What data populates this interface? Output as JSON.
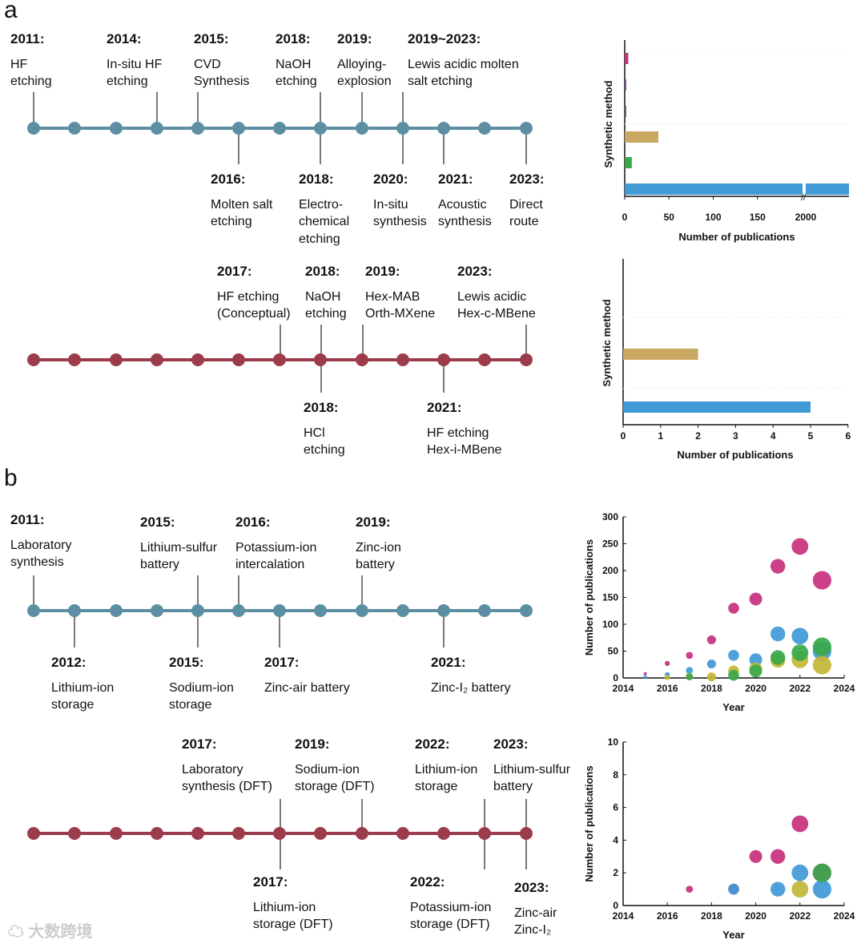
{
  "panels": {
    "a": "a",
    "b": "b"
  },
  "watermark": "大数跨境",
  "colors": {
    "teal": "#5d8fa2",
    "maroon": "#9c3b4c",
    "magenta": "#c8307e",
    "purple": "#7a4fa0",
    "gray": "#666666",
    "gold": "#c9a862",
    "green": "#3aa84a",
    "blue": "#3f9ad6",
    "yellow": "#c2b636"
  },
  "timelines": [
    {
      "color": "teal",
      "events": [
        {
          "year": "2011:",
          "lines": [
            "HF",
            "etching"
          ]
        },
        {
          "year": "2014:",
          "lines": [
            "In-situ HF",
            "etching"
          ]
        },
        {
          "year": "2015:",
          "lines": [
            "CVD",
            "Synthesis"
          ]
        },
        {
          "year": "2018:",
          "lines": [
            "NaOH",
            "etching"
          ]
        },
        {
          "year": "2019:",
          "lines": [
            "Alloying-",
            "explosion"
          ]
        },
        {
          "year": "2019~2023:",
          "lines": [
            "Lewis acidic molten",
            "salt etching"
          ]
        },
        {
          "year": "2016:",
          "lines": [
            "Molten salt",
            "etching"
          ]
        },
        {
          "year": "2018:",
          "lines": [
            "Electro-",
            "chemical",
            "etching"
          ]
        },
        {
          "year": "2020:",
          "lines": [
            "In-situ",
            "synthesis"
          ]
        },
        {
          "year": "2021:",
          "lines": [
            "Acoustic",
            "synthesis"
          ]
        },
        {
          "year": "2023:",
          "lines": [
            "Direct",
            "route"
          ]
        }
      ]
    },
    {
      "color": "maroon",
      "events": [
        {
          "year": "2017:",
          "lines": [
            "HF etching",
            "(Conceptual)"
          ]
        },
        {
          "year": "2018:",
          "lines": [
            "NaOH",
            "etching"
          ]
        },
        {
          "year": "2019:",
          "lines": [
            "Hex-MAB",
            "Orth-MXene"
          ]
        },
        {
          "year": "2023:",
          "lines": [
            "Lewis acidic",
            "Hex-c-MBene"
          ]
        },
        {
          "year": "2018:",
          "lines": [
            "HCl",
            "etching"
          ]
        },
        {
          "year": "2021:",
          "lines": [
            "HF etching",
            "Hex-i-MBene"
          ]
        }
      ]
    },
    {
      "color": "teal",
      "events": [
        {
          "year": "2011:",
          "lines": [
            "Laboratory",
            "synthesis"
          ]
        },
        {
          "year": "2015:",
          "lines": [
            "Lithium-sulfur",
            "battery"
          ]
        },
        {
          "year": "2016:",
          "lines": [
            "Potassium-ion",
            "intercalation"
          ]
        },
        {
          "year": "2019:",
          "lines": [
            "Zinc-ion",
            "battery"
          ]
        },
        {
          "year": "2012:",
          "lines": [
            "Lithium-ion",
            "storage"
          ]
        },
        {
          "year": "2015:",
          "lines": [
            "Sodium-ion",
            "storage"
          ]
        },
        {
          "year": "2017:",
          "lines": [
            "Zinc-air battery"
          ]
        },
        {
          "year": "2021:",
          "lines": [
            "Zinc-I₂ battery"
          ]
        }
      ]
    },
    {
      "color": "maroon",
      "events": [
        {
          "year": "2017:",
          "lines": [
            "Laboratory",
            "synthesis (DFT)"
          ]
        },
        {
          "year": "2019:",
          "lines": [
            "Sodium-ion",
            "storage (DFT)"
          ]
        },
        {
          "year": "2022:",
          "lines": [
            "Lithium-ion",
            "storage"
          ]
        },
        {
          "year": "2023:",
          "lines": [
            "Lithium-sulfur",
            "battery"
          ]
        },
        {
          "year": "2017:",
          "lines": [
            "Lithium-ion",
            "storage (DFT)"
          ]
        },
        {
          "year": "2022:",
          "lines": [
            "Potassium-ion",
            "storage (DFT)"
          ]
        },
        {
          "year": "2023:",
          "lines": [
            "Zinc-air",
            "Zinc-I₂"
          ]
        }
      ]
    }
  ],
  "chart_data": [
    {
      "type": "bar",
      "orientation": "horizontal",
      "xlabel": "Number of publications",
      "ylabel": "Synthetic method",
      "xticks": [
        "0",
        "50",
        "100",
        "150",
        "2000"
      ],
      "axis_break": [
        175,
        1975
      ],
      "bars": [
        {
          "color": "magenta",
          "value": 4
        },
        {
          "color": "purple",
          "value": 1
        },
        {
          "color": "gray",
          "value": 1
        },
        {
          "color": "gold",
          "value": 38
        },
        {
          "color": "green",
          "value": 8
        },
        {
          "color": "blue",
          "value": 2400
        }
      ]
    },
    {
      "type": "bar",
      "orientation": "horizontal",
      "xlabel": "Number of publications",
      "ylabel": "Synthetic method",
      "xlim": [
        0,
        6
      ],
      "xticks": [
        "0",
        "1",
        "2",
        "3",
        "4",
        "5",
        "6"
      ],
      "bars": [
        {
          "color": "gold",
          "value": 2
        },
        {
          "color": "blue",
          "value": 5
        }
      ]
    },
    {
      "type": "scatter",
      "xlabel": "Year",
      "ylabel": "Number of publications",
      "xlim": [
        2014,
        2024
      ],
      "ylim": [
        0,
        300
      ],
      "xticks": [
        "2014",
        "2016",
        "2018",
        "2020",
        "2022",
        "2024"
      ],
      "yticks": [
        "0",
        "50",
        "100",
        "150",
        "200",
        "250",
        "300"
      ],
      "series": [
        {
          "color": "magenta",
          "points": [
            [
              2015,
              8
            ],
            [
              2016,
              27
            ],
            [
              2017,
              42
            ],
            [
              2018,
              71
            ],
            [
              2019,
              130
            ],
            [
              2020,
              147
            ],
            [
              2021,
              208
            ],
            [
              2022,
              245
            ],
            [
              2023,
              182
            ]
          ]
        },
        {
          "color": "blue",
          "points": [
            [
              2015,
              2
            ],
            [
              2016,
              6
            ],
            [
              2017,
              14
            ],
            [
              2018,
              26
            ],
            [
              2019,
              42
            ],
            [
              2020,
              34
            ],
            [
              2021,
              82
            ],
            [
              2022,
              78
            ],
            [
              2023,
              50
            ]
          ]
        },
        {
          "color": "yellow",
          "points": [
            [
              2016,
              1
            ],
            [
              2017,
              3
            ],
            [
              2018,
              2
            ],
            [
              2019,
              13
            ],
            [
              2020,
              17
            ],
            [
              2021,
              33
            ],
            [
              2022,
              34
            ],
            [
              2023,
              24
            ]
          ]
        },
        {
          "color": "green",
          "points": [
            [
              2017,
              2
            ],
            [
              2019,
              5
            ],
            [
              2020,
              13
            ],
            [
              2021,
              38
            ],
            [
              2022,
              47
            ],
            [
              2023,
              58
            ]
          ]
        }
      ]
    },
    {
      "type": "scatter",
      "xlabel": "Year",
      "ylabel": "Number of publications",
      "xlim": [
        2014,
        2024
      ],
      "ylim": [
        0,
        10
      ],
      "xticks": [
        "2014",
        "2016",
        "2018",
        "2020",
        "2022",
        "2024"
      ],
      "yticks": [
        "0",
        "2",
        "4",
        "6",
        "8",
        "10"
      ],
      "series": [
        {
          "color": "magenta",
          "points": [
            [
              2017,
              1
            ],
            [
              2019,
              1
            ],
            [
              2020,
              3
            ],
            [
              2021,
              3
            ],
            [
              2022,
              5
            ],
            [
              2023,
              2
            ]
          ]
        },
        {
          "color": "blue",
          "points": [
            [
              2019,
              1
            ],
            [
              2021,
              1
            ],
            [
              2022,
              2
            ],
            [
              2023,
              1
            ]
          ]
        },
        {
          "color": "yellow",
          "points": [
            [
              2022,
              1
            ]
          ]
        },
        {
          "color": "green",
          "points": [
            [
              2023,
              2
            ]
          ]
        }
      ]
    }
  ]
}
